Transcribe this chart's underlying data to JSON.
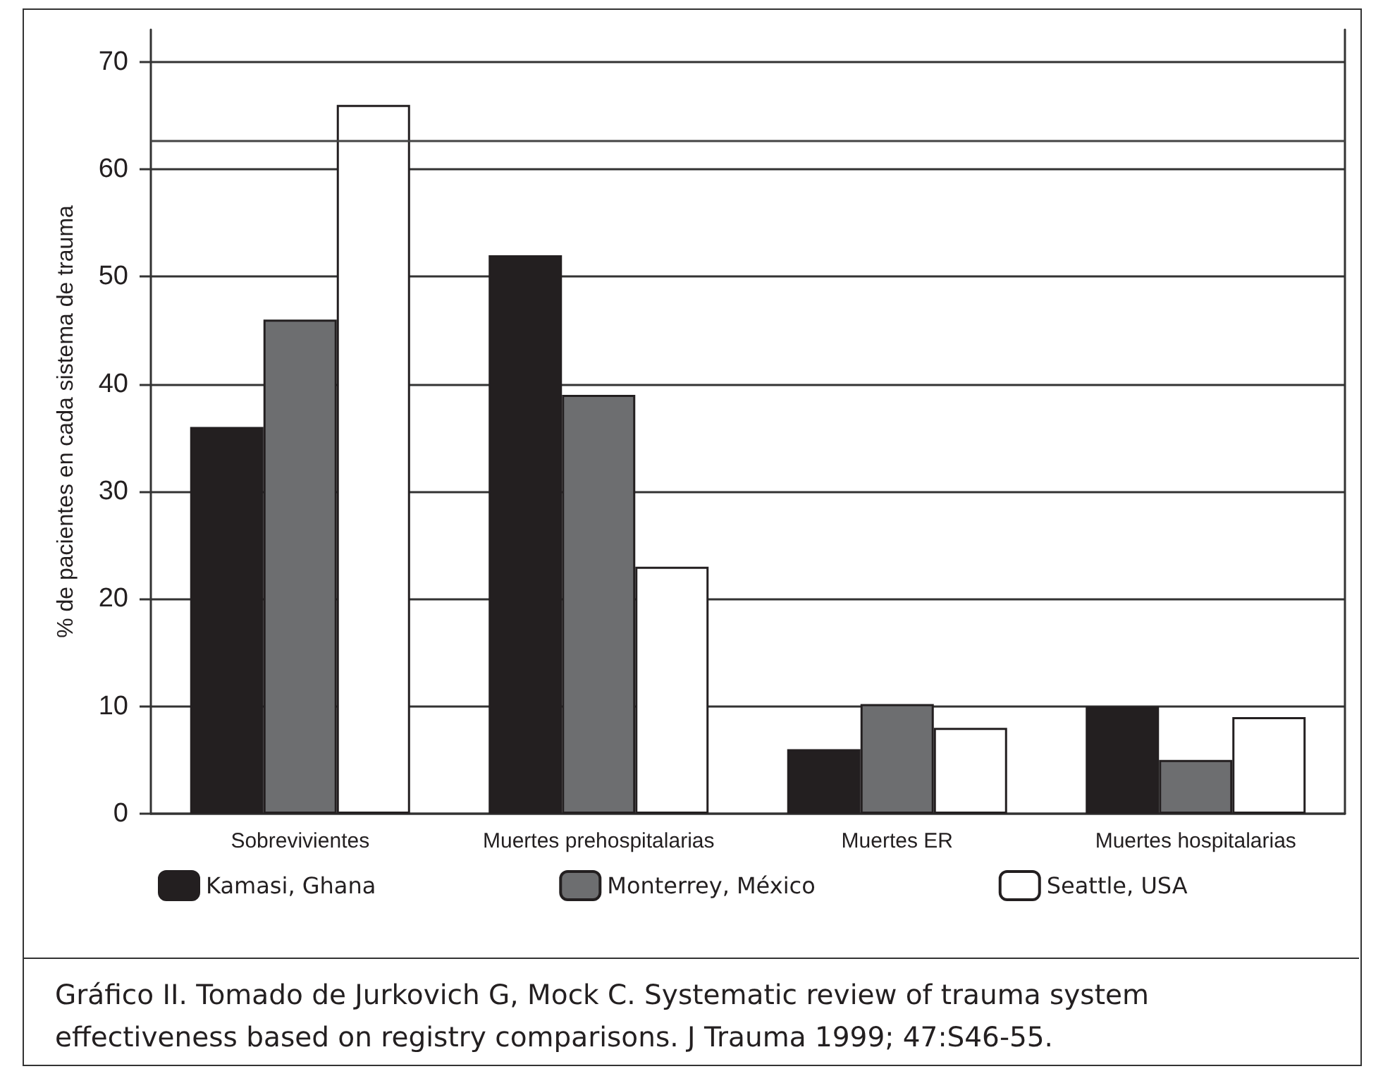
{
  "chart_data": {
    "type": "bar",
    "ylabel": "% de pacientes en cada sistema de trauma",
    "categories": [
      "Sobrevivientes",
      "Muertes prehospitalarias",
      "Muertes ER",
      "Muertes hospitalarias"
    ],
    "series": [
      {
        "name": "Kamasi, Ghana",
        "color": "#231f20",
        "values": [
          36,
          52,
          6,
          10
        ]
      },
      {
        "name": "Monterrey, México",
        "color": "#6d6e70",
        "values": [
          46,
          39,
          10.2,
          5
        ]
      },
      {
        "name": "Seattle, USA",
        "color": "#ffffff",
        "values": [
          66,
          23,
          8,
          9
        ]
      }
    ],
    "ylim": [
      0,
      73
    ],
    "yticks": [
      0,
      10,
      20,
      30,
      40,
      50,
      60,
      70
    ],
    "grid": "y",
    "legend": "bottom",
    "ref_lines": [
      {
        "axis": "y",
        "value": 62.6
      }
    ],
    "annotations": [
      "Gráfico II. Tomado de Jurkovich G, Mock C. Systematic review of trauma system effectiveness based on registry comparisons. J Trauma 1999; 47:S46-55."
    ]
  }
}
